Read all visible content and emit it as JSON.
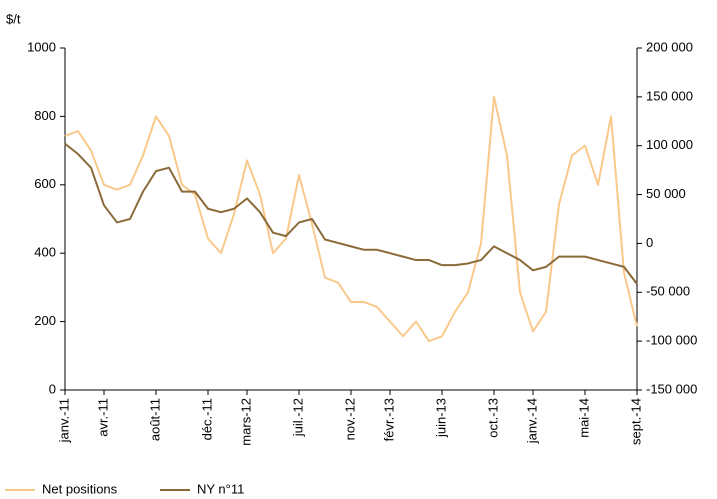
{
  "chart_data": {
    "type": "line",
    "y_label": "$/t",
    "categories": [
      "janv.-11",
      null,
      null,
      "avr.-11",
      null,
      null,
      null,
      "août-11",
      null,
      null,
      null,
      "déc.-11",
      null,
      null,
      "mars-12",
      null,
      null,
      null,
      "juil.-12",
      null,
      null,
      null,
      "nov.-12",
      null,
      null,
      "févr.-13",
      null,
      null,
      null,
      "juin-13",
      null,
      null,
      null,
      "oct.-13",
      null,
      null,
      "janv.-14",
      null,
      null,
      null,
      "mai-14",
      null,
      null,
      null,
      "sept.-14"
    ],
    "series": [
      {
        "name": "Net positions",
        "color": "#f9c98c",
        "axis": "y2",
        "values": [
          110000,
          115000,
          95000,
          60000,
          55000,
          60000,
          90000,
          130000,
          110000,
          60000,
          50000,
          5000,
          -10000,
          30000,
          85000,
          50000,
          -10000,
          5000,
          70000,
          20000,
          -35000,
          -40000,
          -60000,
          -60000,
          -65000,
          -80000,
          -95000,
          -80000,
          -100000,
          -95000,
          -70000,
          -50000,
          0,
          150000,
          90000,
          -50000,
          -90000,
          -70000,
          40000,
          90000,
          100000,
          60000,
          130000,
          -30000,
          -85000
        ]
      },
      {
        "name": "NY n°11",
        "color": "#8b6a3a",
        "values": [
          720,
          690,
          650,
          540,
          490,
          500,
          580,
          640,
          650,
          580,
          580,
          530,
          520,
          530,
          560,
          520,
          460,
          450,
          490,
          500,
          440,
          430,
          420,
          410,
          410,
          400,
          390,
          380,
          380,
          365,
          365,
          370,
          380,
          420,
          400,
          380,
          350,
          360,
          390,
          390,
          390,
          380,
          370,
          360,
          310
        ]
      }
    ],
    "ylim": [
      0,
      1000
    ],
    "yticks": [
      0,
      200,
      400,
      600,
      800,
      1000
    ],
    "y2lim": [
      -150000,
      200000
    ],
    "y2ticks": [
      {
        "value": -150000,
        "label": "-150 000"
      },
      {
        "value": -100000,
        "label": "-100 000"
      },
      {
        "value": -50000,
        "label": "-50 000"
      },
      0,
      {
        "value": 50000,
        "label": "50 000"
      },
      {
        "value": 100000,
        "label": "100 000"
      },
      {
        "value": 150000,
        "label": "150 000"
      },
      {
        "value": 200000,
        "label": "200 000"
      }
    ],
    "grid": false
  }
}
